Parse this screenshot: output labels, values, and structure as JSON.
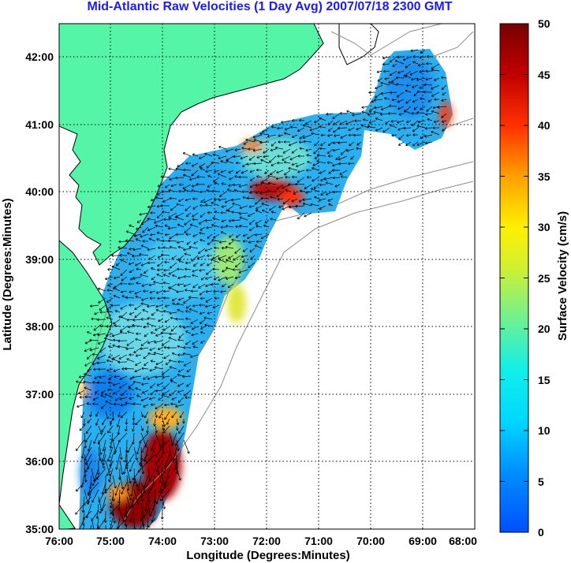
{
  "title": "Mid-Atlantic Raw Velocities (1 Day Avg) 2007/07/18 2300 GMT",
  "xlabel": "Longitude (Degrees:Minutes)",
  "ylabel": "Latitude (Degrees:Minutes)",
  "colorbar_label": "Surface Velocity (cm/s)",
  "x_ticks": [
    "76:00",
    "75:00",
    "74:00",
    "73:00",
    "72:00",
    "71:00",
    "70:00",
    "69:00",
    "68:00"
  ],
  "y_ticks": [
    "42:00",
    "41:00",
    "40:00",
    "39:00",
    "38:00",
    "37:00",
    "36:00",
    "35:00"
  ],
  "colorbar_ticks": [
    "0",
    "5",
    "10",
    "15",
    "20",
    "25",
    "30",
    "35",
    "40",
    "45",
    "50"
  ],
  "colors": {
    "land": "#55f5a8",
    "title": "#1a1aff"
  },
  "chart_data": {
    "type": "heatmap",
    "lon_range": [
      -76,
      -68
    ],
    "lat_range": [
      35,
      42.5
    ],
    "color_range": [
      0,
      50
    ],
    "grid": true,
    "colorbar": "right"
  }
}
